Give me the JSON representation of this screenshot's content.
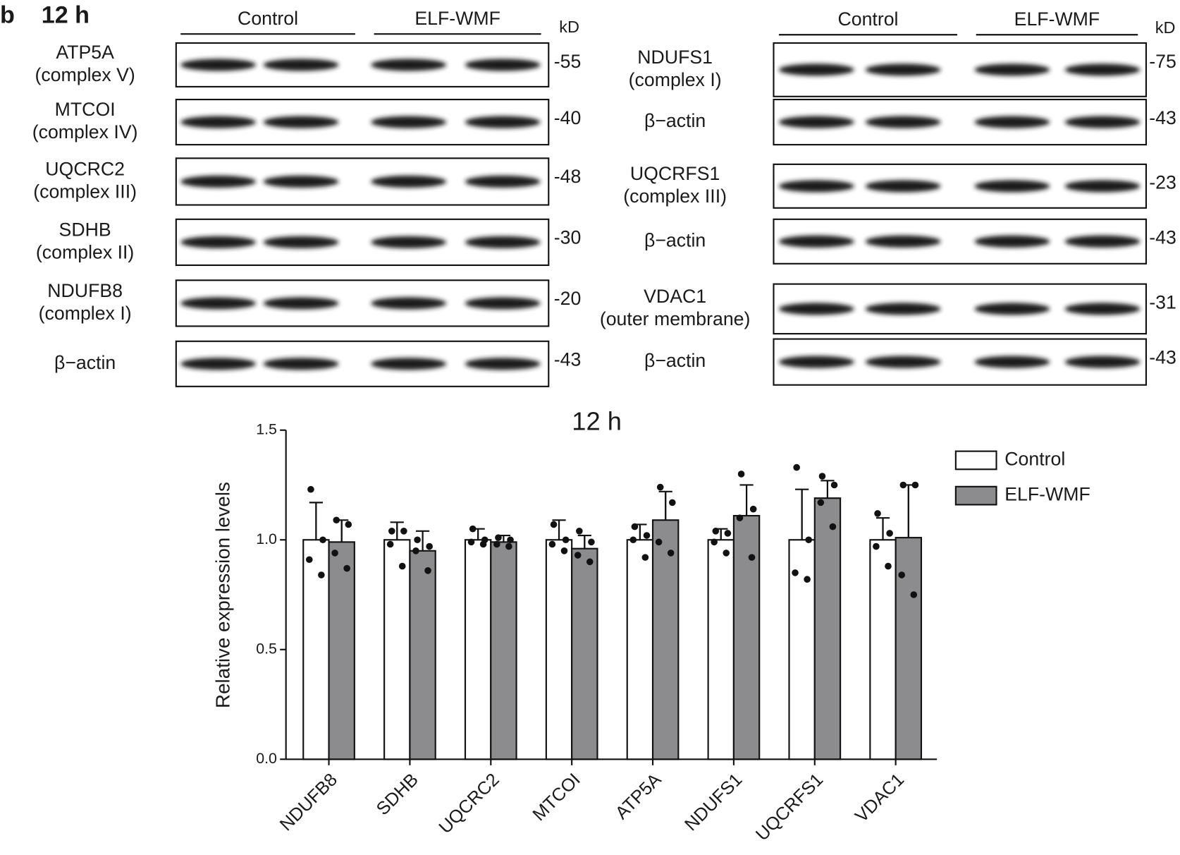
{
  "panel": "b",
  "time": "12 h",
  "left_blot": {
    "groups": [
      "Control",
      "ELF-WMF"
    ],
    "unit": "kD",
    "rows": [
      {
        "label": [
          "ATP5A",
          "(complex V)"
        ],
        "kd": "-55"
      },
      {
        "label": [
          "MTCOI",
          "(complex IV)"
        ],
        "kd": "-40"
      },
      {
        "label": [
          "UQCRC2",
          "(complex III)"
        ],
        "kd": "-48"
      },
      {
        "label": [
          "SDHB",
          "(complex II)"
        ],
        "kd": "-30"
      },
      {
        "label": [
          "NDUFB8",
          "(complex I)"
        ],
        "kd": "-20"
      },
      {
        "label": [
          "β−actin"
        ],
        "kd": "-43"
      }
    ]
  },
  "right_blot": {
    "groups": [
      "Control",
      "ELF-WMF"
    ],
    "unit": "kD",
    "rows": [
      {
        "label": [
          "NDUFS1",
          "(complex I)"
        ],
        "kd": "-75"
      },
      {
        "label": [
          "β−actin"
        ],
        "kd": "-43"
      },
      {
        "label": [
          "UQCRFS1",
          "(complex III)"
        ],
        "kd": "-23"
      },
      {
        "label": [
          "β−actin"
        ],
        "kd": "-43"
      },
      {
        "label": [
          "VDAC1",
          "(outer membrane)"
        ],
        "kd": "-31"
      },
      {
        "label": [
          "β−actin"
        ],
        "kd": "-43"
      }
    ]
  },
  "chart_data": {
    "type": "bar",
    "title": "12 h",
    "y_label": "Relative expression levels",
    "categories": [
      "NDUFB8",
      "SDHB",
      "UQCRC2",
      "MTCOI",
      "ATP5A",
      "NDUFS1",
      "UQCRFS1",
      "VDAC1"
    ],
    "series": [
      {
        "name": "Control",
        "color": "#ffffff",
        "values": [
          1.0,
          1.0,
          1.0,
          1.0,
          1.0,
          1.0,
          1.0,
          1.0
        ],
        "errors": [
          0.17,
          0.08,
          0.05,
          0.09,
          0.07,
          0.05,
          0.23,
          0.1
        ],
        "points": [
          [
            1.23,
            1.0,
            0.91,
            0.84
          ],
          [
            1.04,
            1.04,
            0.98,
            0.88
          ],
          [
            1.05,
            1.0,
            0.99,
            0.98
          ],
          [
            1.07,
            1.0,
            0.98,
            0.95
          ],
          [
            1.06,
            1.02,
            1.0,
            0.92
          ],
          [
            1.04,
            1.03,
            0.99,
            0.94
          ],
          [
            1.33,
            1.0,
            0.85,
            0.82
          ],
          [
            1.12,
            1.03,
            0.97,
            0.88
          ]
        ]
      },
      {
        "name": "ELF-WMF",
        "color": "#8c8c8e",
        "values": [
          0.99,
          0.95,
          0.99,
          0.96,
          1.09,
          1.11,
          1.19,
          1.01
        ],
        "errors": [
          0.1,
          0.09,
          0.03,
          0.06,
          0.13,
          0.14,
          0.08,
          0.24
        ],
        "points": [
          [
            1.09,
            1.07,
            0.94,
            0.87
          ],
          [
            1.0,
            0.97,
            0.95,
            0.86
          ],
          [
            1.01,
            1.0,
            0.98,
            0.97
          ],
          [
            1.04,
            0.99,
            0.93,
            0.9
          ],
          [
            1.24,
            1.17,
            0.99,
            0.94
          ],
          [
            1.3,
            1.14,
            1.1,
            0.92
          ],
          [
            1.29,
            1.25,
            1.17,
            1.06
          ],
          [
            1.25,
            1.25,
            0.84,
            0.75
          ]
        ]
      }
    ],
    "ylim": [
      0,
      1.5
    ],
    "yticks": [
      {
        "value": 0,
        "label": "0.0"
      },
      0.5,
      {
        "value": 1,
        "label": "1.0"
      },
      1.5
    ],
    "legend": "upper right"
  }
}
